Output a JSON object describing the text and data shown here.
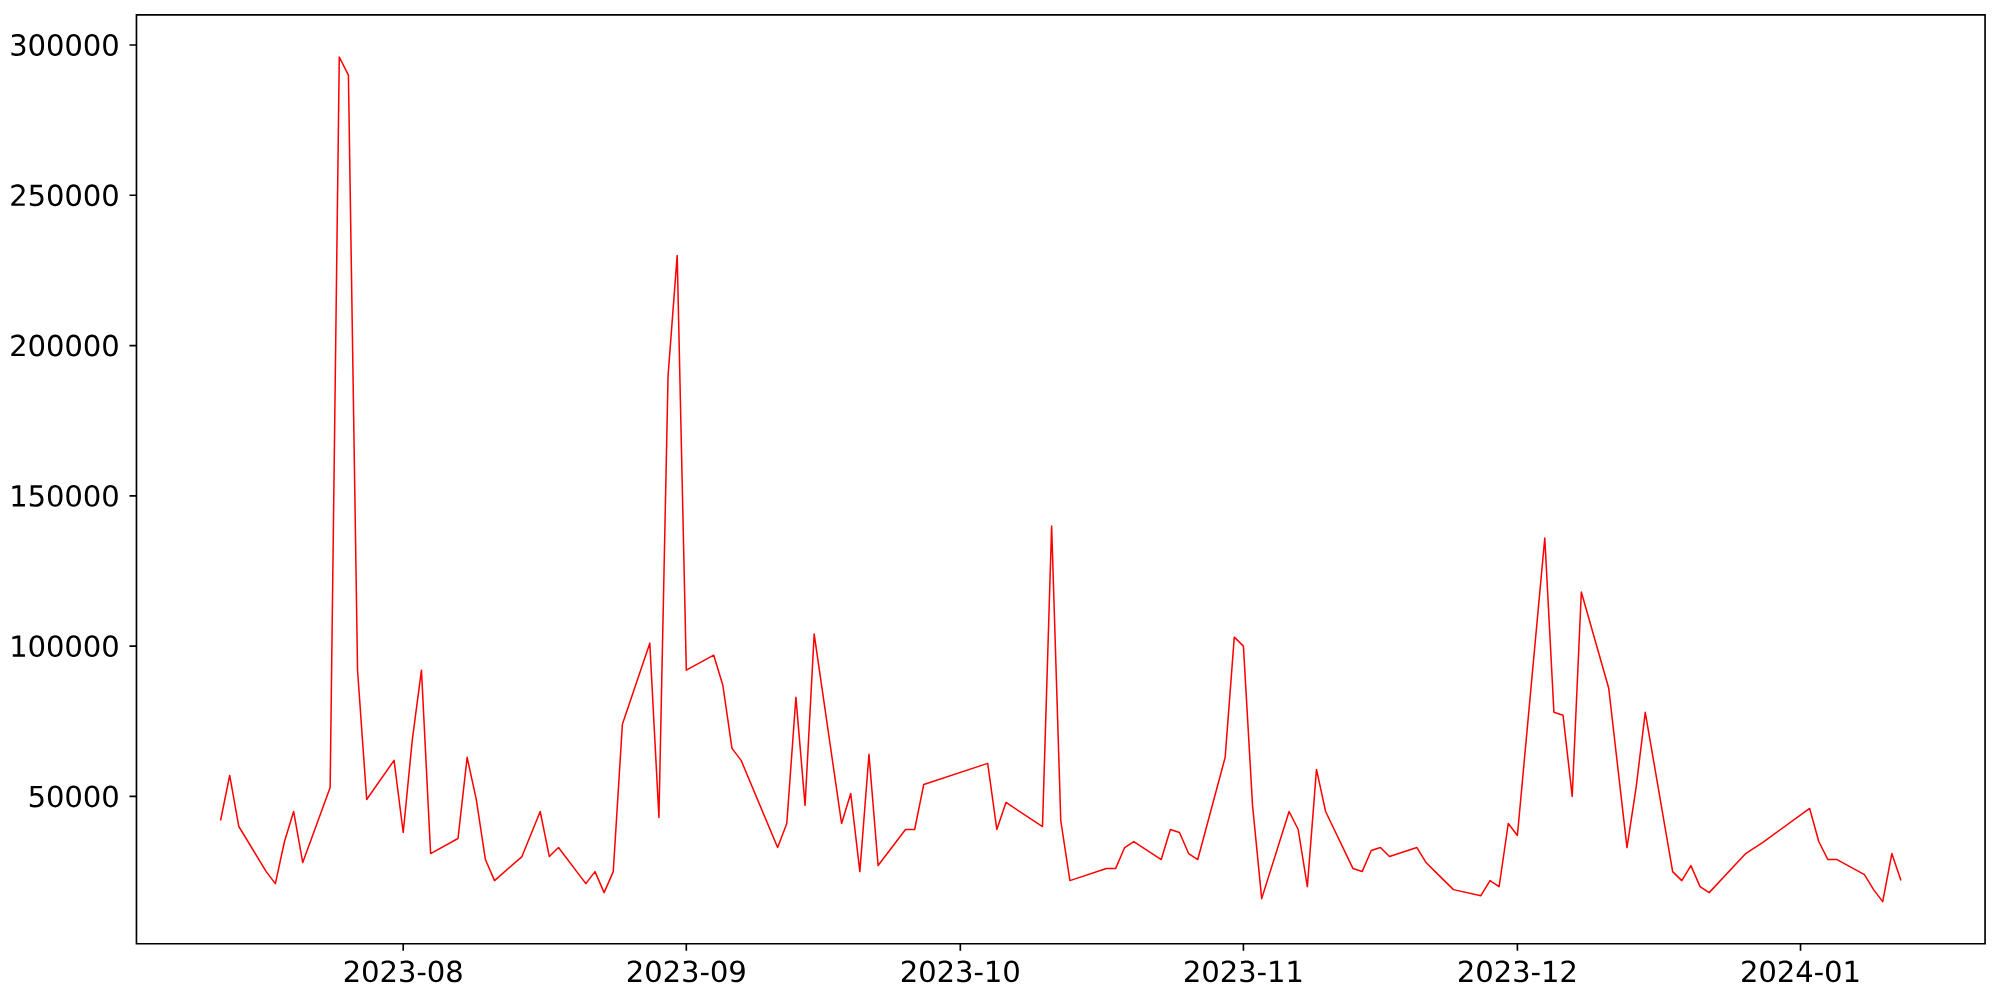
{
  "chart_data": {
    "type": "line",
    "color": "#ff0000",
    "line_style": "solid",
    "x": [
      "2023-07-12",
      "2023-07-13",
      "2023-07-14",
      "2023-07-17",
      "2023-07-18",
      "2023-07-19",
      "2023-07-20",
      "2023-07-21",
      "2023-07-24",
      "2023-07-25",
      "2023-07-26",
      "2023-07-27",
      "2023-07-28",
      "2023-07-31",
      "2023-08-01",
      "2023-08-02",
      "2023-08-03",
      "2023-08-04",
      "2023-08-07",
      "2023-08-08",
      "2023-08-09",
      "2023-08-10",
      "2023-08-11",
      "2023-08-14",
      "2023-08-16",
      "2023-08-17",
      "2023-08-18",
      "2023-08-21",
      "2023-08-22",
      "2023-08-23",
      "2023-08-24",
      "2023-08-25",
      "2023-08-28",
      "2023-08-29",
      "2023-08-30",
      "2023-08-31",
      "2023-09-01",
      "2023-09-04",
      "2023-09-05",
      "2023-09-06",
      "2023-09-07",
      "2023-09-11",
      "2023-09-12",
      "2023-09-13",
      "2023-09-14",
      "2023-09-15",
      "2023-09-18",
      "2023-09-19",
      "2023-09-20",
      "2023-09-21",
      "2023-09-22",
      "2023-09-25",
      "2023-09-26",
      "2023-09-27",
      "2023-10-04",
      "2023-10-05",
      "2023-10-06",
      "2023-10-10",
      "2023-10-11",
      "2023-10-12",
      "2023-10-13",
      "2023-10-17",
      "2023-10-18",
      "2023-10-19",
      "2023-10-20",
      "2023-10-23",
      "2023-10-24",
      "2023-10-25",
      "2023-10-26",
      "2023-10-27",
      "2023-10-30",
      "2023-10-31",
      "2023-11-01",
      "2023-11-02",
      "2023-11-03",
      "2023-11-06",
      "2023-11-07",
      "2023-11-08",
      "2023-11-09",
      "2023-11-10",
      "2023-11-13",
      "2023-11-14",
      "2023-11-15",
      "2023-11-16",
      "2023-11-17",
      "2023-11-20",
      "2023-11-21",
      "2023-11-22",
      "2023-11-24",
      "2023-11-27",
      "2023-11-28",
      "2023-11-29",
      "2023-11-30",
      "2023-12-01",
      "2023-12-04",
      "2023-12-05",
      "2023-12-06",
      "2023-12-07",
      "2023-12-08",
      "2023-12-11",
      "2023-12-13",
      "2023-12-14",
      "2023-12-15",
      "2023-12-18",
      "2023-12-19",
      "2023-12-20",
      "2023-12-21",
      "2023-12-22",
      "2023-12-26",
      "2023-12-27",
      "2023-12-28",
      "2024-01-02",
      "2024-01-03",
      "2024-01-04",
      "2024-01-05",
      "2024-01-08",
      "2024-01-09",
      "2024-01-10",
      "2024-01-11",
      "2024-01-12"
    ],
    "values": [
      42000,
      57000,
      40000,
      25000,
      21000,
      35000,
      45000,
      28000,
      53000,
      296000,
      290000,
      92000,
      49000,
      62000,
      38000,
      69000,
      92000,
      31000,
      36000,
      63000,
      49000,
      29000,
      22000,
      30000,
      45000,
      30000,
      33000,
      21000,
      25000,
      18000,
      25000,
      74000,
      101000,
      43000,
      190000,
      230000,
      92000,
      97000,
      87000,
      66000,
      62000,
      33000,
      41000,
      83000,
      47000,
      104000,
      41000,
      51000,
      25000,
      64000,
      27000,
      39000,
      39000,
      54000,
      61000,
      39000,
      48000,
      40000,
      140000,
      42000,
      22000,
      26000,
      26000,
      33000,
      35000,
      29000,
      39000,
      38000,
      31000,
      29000,
      63000,
      103000,
      100000,
      47000,
      16000,
      45000,
      39000,
      20000,
      59000,
      45000,
      26000,
      25000,
      32000,
      33000,
      30000,
      33000,
      28000,
      25000,
      19000,
      17000,
      22000,
      20000,
      41000,
      37000,
      136000,
      78000,
      77000,
      50000,
      118000,
      86000,
      33000,
      53000,
      78000,
      25000,
      22000,
      27000,
      20000,
      18000,
      31000,
      33000,
      35000,
      46000,
      35000,
      29000,
      29000,
      24000,
      19000,
      15000,
      31000,
      22000
    ],
    "xlim": [
      "2023-07-02T19:00",
      "2024-01-21T05:00"
    ],
    "ylim": [
      1000,
      310000
    ],
    "xticks": [
      {
        "value": "2023-08-01",
        "label": "2023-08"
      },
      {
        "value": "2023-09-01",
        "label": "2023-09"
      },
      {
        "value": "2023-10-01",
        "label": "2023-10"
      },
      {
        "value": "2023-11-01",
        "label": "2023-11"
      },
      {
        "value": "2023-12-01",
        "label": "2023-12"
      },
      {
        "value": "2024-01-01",
        "label": "2024-01"
      }
    ],
    "yticks": [
      50000,
      100000,
      150000,
      200000,
      250000,
      300000
    ]
  }
}
